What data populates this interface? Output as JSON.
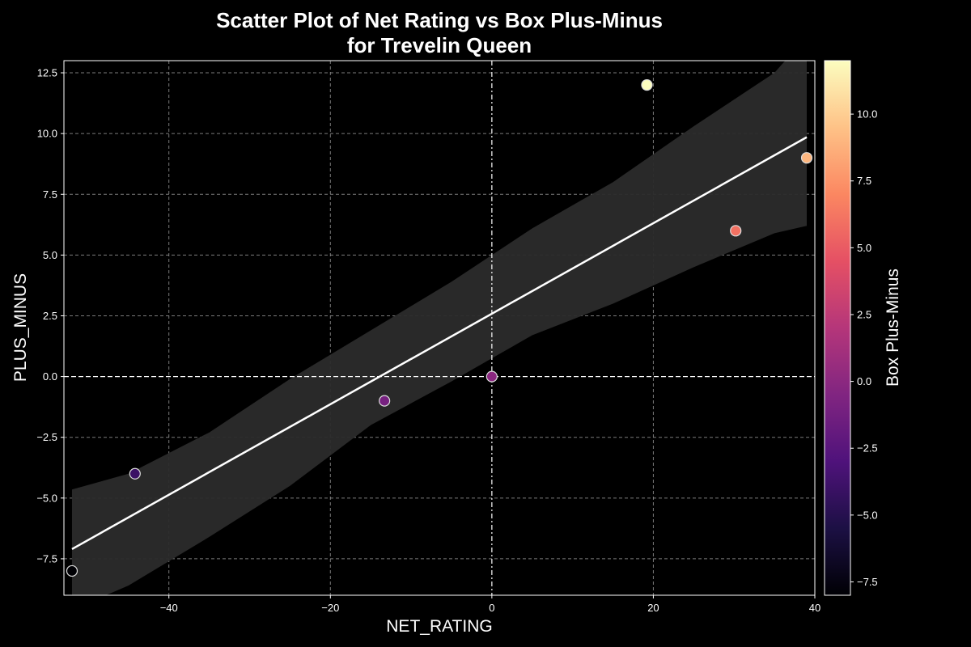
{
  "chart_data": {
    "type": "scatter",
    "title_lines": [
      "Scatter Plot of Net Rating vs Box Plus-Minus",
      "for Trevelin Queen"
    ],
    "xlabel": "NET_RATING",
    "ylabel": "PLUS_MINUS",
    "colorbar_label": "Box Plus-Minus",
    "xlim": [
      -53,
      40
    ],
    "ylim": [
      -9,
      13
    ],
    "x_ticks": [
      -40,
      -20,
      0,
      20,
      40
    ],
    "y_ticks": [
      -7.5,
      -5.0,
      -2.5,
      0.0,
      2.5,
      5.0,
      7.5,
      10.0,
      12.5
    ],
    "colorbar_ticks": [
      -7.5,
      -5.0,
      -2.5,
      0.0,
      2.5,
      5.0,
      7.5,
      10.0
    ],
    "colorbar_range": [
      -8,
      12
    ],
    "colormap": "magma",
    "grid": true,
    "reference_lines": {
      "x": 0,
      "y": 0
    },
    "points": [
      {
        "x": -52,
        "y": -8
      },
      {
        "x": -44.2,
        "y": -4
      },
      {
        "x": -13.3,
        "y": -1
      },
      {
        "x": 0,
        "y": 0
      },
      {
        "x": 19.2,
        "y": 12
      },
      {
        "x": 30.2,
        "y": 6
      },
      {
        "x": 39,
        "y": 9
      }
    ],
    "regression_line": {
      "x": [
        -52,
        39
      ],
      "y": [
        -7.1,
        9.85
      ]
    },
    "confidence_band": {
      "x": [
        -52,
        -45,
        -35,
        -25,
        -15,
        -5,
        0,
        5,
        15,
        25,
        35,
        39
      ],
      "upper": [
        -4.65,
        -4.0,
        -2.3,
        -0.1,
        1.9,
        3.9,
        5.0,
        6.1,
        8.0,
        10.3,
        12.5,
        14.0
      ],
      "lower": [
        -9.6,
        -8.6,
        -6.6,
        -4.5,
        -2.0,
        -0.2,
        0.75,
        1.7,
        3.0,
        4.5,
        5.9,
        6.2
      ]
    },
    "colors": {
      "background": "#000000",
      "grid": "#9a9a9a",
      "regression": "#ffffff",
      "band": "#2b2b2b"
    }
  }
}
